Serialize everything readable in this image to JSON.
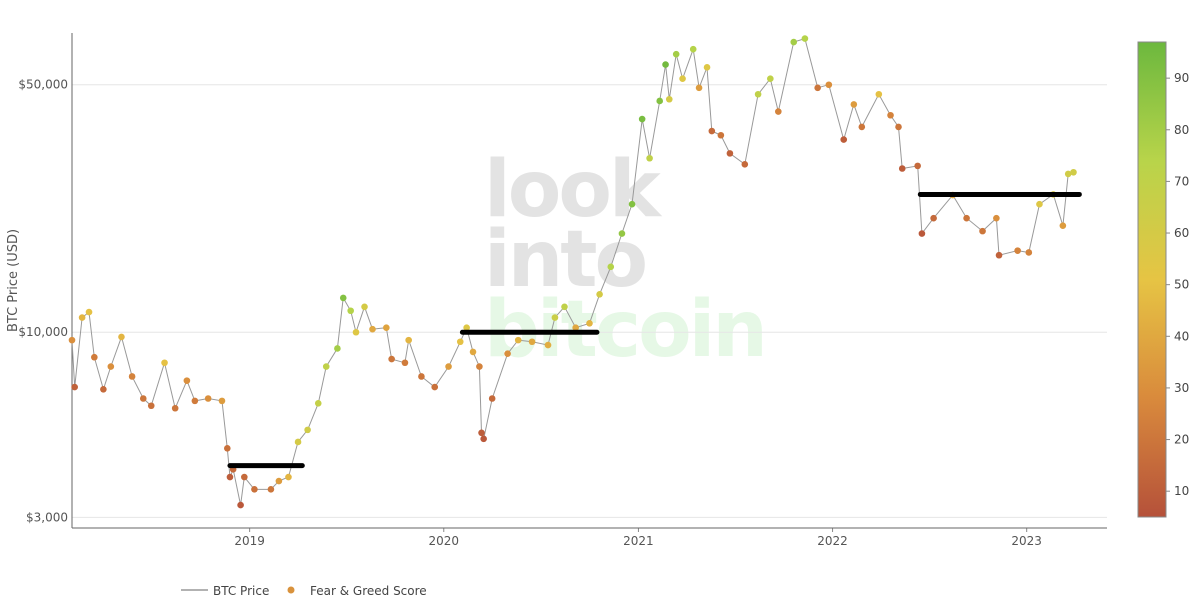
{
  "chart_data": {
    "type": "scatter",
    "ylabel": "BTC Price (USD)",
    "y_scale": "log",
    "ylim": [
      2800,
      70000
    ],
    "y_ticks": [
      {
        "value": 3000,
        "label": "$3,000"
      },
      {
        "value": 10000,
        "label": "$10,000"
      },
      {
        "value": 50000,
        "label": "$50,000"
      }
    ],
    "xlim": [
      "2018-02-01",
      "2023-06-01"
    ],
    "x_ticks": [
      {
        "value": "2019-01-01",
        "label": "2019"
      },
      {
        "value": "2020-01-01",
        "label": "2020"
      },
      {
        "value": "2021-01-01",
        "label": "2021"
      },
      {
        "value": "2022-01-01",
        "label": "2022"
      },
      {
        "value": "2023-01-01",
        "label": "2023"
      }
    ],
    "colorbar": {
      "range": [
        5,
        97
      ],
      "ticks": [
        10,
        20,
        30,
        40,
        50,
        60,
        70,
        80,
        90
      ],
      "colors": [
        "#b5513a",
        "#d98a3c",
        "#e6c444",
        "#b8d44a",
        "#6cb83e"
      ]
    },
    "watermark": [
      "look",
      "into",
      "bitcoin"
    ],
    "legend": [
      {
        "label": "BTC Price",
        "kind": "line",
        "color": "#999999"
      },
      {
        "label": "Fear & Greed Score",
        "kind": "marker",
        "color": "#d9923c"
      }
    ],
    "series": [
      {
        "name": "BTC Price",
        "points": [
          [
            "2018-02-01",
            9500,
            30
          ],
          [
            "2018-02-06",
            7000,
            12
          ],
          [
            "2018-02-20",
            11000,
            45
          ],
          [
            "2018-03-05",
            11400,
            50
          ],
          [
            "2018-03-15",
            8500,
            22
          ],
          [
            "2018-04-01",
            6900,
            15
          ],
          [
            "2018-04-15",
            8000,
            30
          ],
          [
            "2018-05-05",
            9700,
            45
          ],
          [
            "2018-05-25",
            7500,
            25
          ],
          [
            "2018-06-15",
            6500,
            20
          ],
          [
            "2018-06-30",
            6200,
            18
          ],
          [
            "2018-07-25",
            8200,
            50
          ],
          [
            "2018-08-14",
            6100,
            20
          ],
          [
            "2018-09-05",
            7300,
            30
          ],
          [
            "2018-09-20",
            6400,
            22
          ],
          [
            "2018-10-15",
            6500,
            30
          ],
          [
            "2018-11-10",
            6400,
            35
          ],
          [
            "2018-11-20",
            4700,
            18
          ],
          [
            "2018-11-25",
            3900,
            10
          ],
          [
            "2018-12-01",
            4100,
            15
          ],
          [
            "2018-12-15",
            3250,
            8
          ],
          [
            "2018-12-22",
            3900,
            15
          ],
          [
            "2019-01-10",
            3600,
            18
          ],
          [
            "2019-02-10",
            3600,
            20
          ],
          [
            "2019-02-25",
            3800,
            35
          ],
          [
            "2019-03-15",
            3900,
            45
          ],
          [
            "2019-04-02",
            4900,
            60
          ],
          [
            "2019-04-20",
            5300,
            62
          ],
          [
            "2019-05-10",
            6300,
            68
          ],
          [
            "2019-05-25",
            8000,
            70
          ],
          [
            "2019-06-15",
            9000,
            80
          ],
          [
            "2019-06-26",
            12500,
            90
          ],
          [
            "2019-07-10",
            11500,
            75
          ],
          [
            "2019-07-20",
            10000,
            55
          ],
          [
            "2019-08-05",
            11800,
            60
          ],
          [
            "2019-08-20",
            10200,
            40
          ],
          [
            "2019-09-15",
            10300,
            38
          ],
          [
            "2019-09-25",
            8400,
            20
          ],
          [
            "2019-10-20",
            8200,
            22
          ],
          [
            "2019-10-27",
            9500,
            45
          ],
          [
            "2019-11-20",
            7500,
            20
          ],
          [
            "2019-12-15",
            7000,
            18
          ],
          [
            "2020-01-10",
            8000,
            35
          ],
          [
            "2020-02-01",
            9400,
            50
          ],
          [
            "2020-02-13",
            10300,
            55
          ],
          [
            "2020-02-25",
            8800,
            40
          ],
          [
            "2020-03-08",
            8000,
            25
          ],
          [
            "2020-03-12",
            5200,
            10
          ],
          [
            "2020-03-16",
            5000,
            8
          ],
          [
            "2020-04-01",
            6500,
            15
          ],
          [
            "2020-04-30",
            8700,
            30
          ],
          [
            "2020-05-20",
            9500,
            45
          ],
          [
            "2020-06-15",
            9400,
            40
          ],
          [
            "2020-07-15",
            9200,
            42
          ],
          [
            "2020-07-28",
            11000,
            65
          ],
          [
            "2020-08-15",
            11800,
            70
          ],
          [
            "2020-09-05",
            10300,
            40
          ],
          [
            "2020-10-01",
            10600,
            45
          ],
          [
            "2020-10-20",
            12800,
            60
          ],
          [
            "2020-11-10",
            15300,
            75
          ],
          [
            "2020-12-01",
            19000,
            85
          ],
          [
            "2020-12-20",
            23000,
            90
          ],
          [
            "2021-01-08",
            40000,
            93
          ],
          [
            "2021-01-22",
            31000,
            70
          ],
          [
            "2021-02-10",
            45000,
            90
          ],
          [
            "2021-02-21",
            57000,
            95
          ],
          [
            "2021-02-28",
            45500,
            60
          ],
          [
            "2021-03-13",
            61000,
            80
          ],
          [
            "2021-03-25",
            52000,
            55
          ],
          [
            "2021-04-14",
            63000,
            75
          ],
          [
            "2021-04-25",
            49000,
            35
          ],
          [
            "2021-05-10",
            56000,
            55
          ],
          [
            "2021-05-19",
            37000,
            15
          ],
          [
            "2021-06-05",
            36000,
            20
          ],
          [
            "2021-06-22",
            32000,
            12
          ],
          [
            "2021-07-20",
            29800,
            15
          ],
          [
            "2021-08-14",
            47000,
            70
          ],
          [
            "2021-09-06",
            52000,
            70
          ],
          [
            "2021-09-21",
            42000,
            25
          ],
          [
            "2021-10-20",
            66000,
            80
          ],
          [
            "2021-11-10",
            67500,
            75
          ],
          [
            "2021-12-04",
            49000,
            20
          ],
          [
            "2021-12-25",
            50000,
            30
          ],
          [
            "2022-01-22",
            35000,
            10
          ],
          [
            "2022-02-10",
            44000,
            35
          ],
          [
            "2022-02-25",
            38000,
            20
          ],
          [
            "2022-03-29",
            47000,
            50
          ],
          [
            "2022-04-20",
            41000,
            25
          ],
          [
            "2022-05-05",
            38000,
            20
          ],
          [
            "2022-05-12",
            29000,
            10
          ],
          [
            "2022-06-10",
            29500,
            15
          ],
          [
            "2022-06-18",
            19000,
            8
          ],
          [
            "2022-07-10",
            21000,
            15
          ],
          [
            "2022-08-15",
            24400,
            40
          ],
          [
            "2022-09-10",
            21000,
            20
          ],
          [
            "2022-10-10",
            19300,
            20
          ],
          [
            "2022-11-05",
            21000,
            30
          ],
          [
            "2022-11-10",
            16500,
            12
          ],
          [
            "2022-12-15",
            17000,
            25
          ],
          [
            "2023-01-05",
            16800,
            25
          ],
          [
            "2023-01-25",
            23000,
            55
          ],
          [
            "2023-02-20",
            24500,
            58
          ],
          [
            "2023-03-10",
            20000,
            35
          ],
          [
            "2023-03-20",
            28000,
            62
          ],
          [
            "2023-03-30",
            28300,
            62
          ]
        ]
      },
      {
        "name": "Fear & Greed Score",
        "note": "markers share the BTC price points; each point colored by its score"
      }
    ],
    "annotations": [
      {
        "type": "hbar",
        "x0": "2018-11-25",
        "x1": "2019-04-10",
        "y": 4200,
        "color": "#000000"
      },
      {
        "type": "hbar",
        "x0": "2020-02-05",
        "x1": "2020-10-15",
        "y": 10000,
        "color": "#000000"
      },
      {
        "type": "hbar",
        "x0": "2022-06-15",
        "x1": "2023-04-10",
        "y": 24500,
        "color": "#000000"
      }
    ]
  }
}
